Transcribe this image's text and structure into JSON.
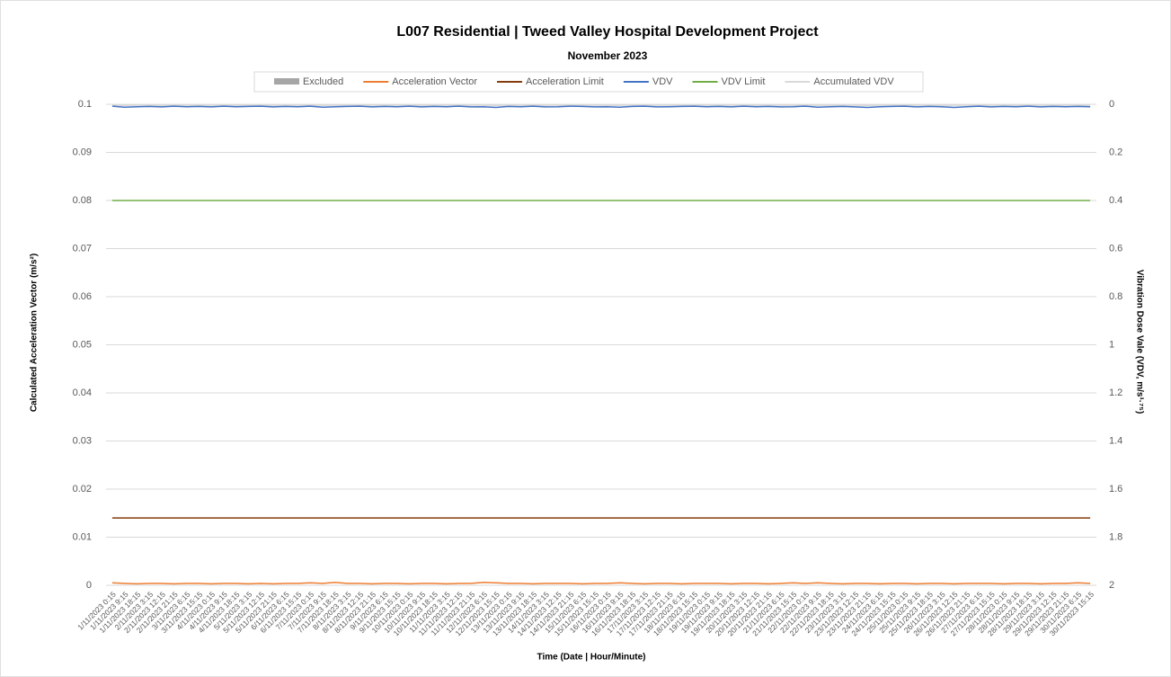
{
  "chart_data": {
    "type": "line",
    "title": "L007 Residential | Tweed Valley Hospital Development Project",
    "subtitle": "November 2023",
    "xlabel": "Time (Date | Hour/Minute)",
    "ylabel": "Calculated Acceleration Vector (m/s²)",
    "y2label": "Vibration Dose Vale (VDV, m/s¹·⁷⁵)",
    "ylim": [
      0,
      0.1
    ],
    "yticks": [
      0,
      0.01,
      0.02,
      0.03,
      0.04,
      0.05,
      0.06,
      0.07,
      0.08,
      0.09,
      0.1
    ],
    "y2lim": [
      2,
      0
    ],
    "y2ticks": [
      0,
      0.2,
      0.4,
      0.6,
      0.8,
      1,
      1.2,
      1.4,
      1.6,
      1.8,
      2
    ],
    "grid": true,
    "legend": "top",
    "categories": [
      "1/11/2023 0:15",
      "1/11/2023 9:15",
      "1/11/2023 18:15",
      "2/11/2023 3:15",
      "2/11/2023 12:15",
      "2/11/2023 21:15",
      "3/11/2023 6:15",
      "3/11/2023 15:15",
      "4/11/2023 0:15",
      "4/11/2023 9:15",
      "4/11/2023 18:15",
      "5/11/2023 3:15",
      "5/11/2023 12:15",
      "5/11/2023 21:15",
      "6/11/2023 6:15",
      "6/11/2023 15:15",
      "7/11/2023 0:15",
      "7/11/2023 9:15",
      "7/11/2023 18:15",
      "8/11/2023 3:15",
      "8/11/2023 12:15",
      "8/11/2023 21:15",
      "9/11/2023 6:15",
      "9/11/2023 15:15",
      "10/11/2023 0:15",
      "10/11/2023 9:15",
      "10/11/2023 18:15",
      "11/11/2023 3:15",
      "11/11/2023 12:15",
      "11/11/2023 21:15",
      "12/11/2023 6:15",
      "12/11/2023 15:15",
      "13/11/2023 0:15",
      "13/11/2023 9:15",
      "13/11/2023 18:15",
      "14/11/2023 3:15",
      "14/11/2023 12:15",
      "14/11/2023 21:15",
      "15/11/2023 6:15",
      "15/11/2023 15:15",
      "16/11/2023 0:15",
      "16/11/2023 9:15",
      "16/11/2023 18:15",
      "17/11/2023 3:15",
      "17/11/2023 12:15",
      "17/11/2023 21:15",
      "18/11/2023 6:15",
      "18/11/2023 15:15",
      "19/11/2023 0:15",
      "19/11/2023 9:15",
      "19/11/2023 18:15",
      "20/11/2023 3:15",
      "20/11/2023 12:15",
      "20/11/2023 21:15",
      "21/11/2023 6:15",
      "21/11/2023 15:15",
      "22/11/2023 0:15",
      "22/11/2023 9:15",
      "22/11/2023 18:15",
      "23/11/2023 3:15",
      "23/11/2023 12:15",
      "23/11/2023 21:15",
      "24/11/2023 6:15",
      "24/11/2023 15:15",
      "25/11/2023 0:15",
      "25/11/2023 9:15",
      "25/11/2023 18:15",
      "26/11/2023 3:15",
      "26/11/2023 12:15",
      "26/11/2023 21:15",
      "27/11/2023 6:15",
      "27/11/2023 15:15",
      "28/11/2023 0:15",
      "28/11/2023 9:15",
      "28/11/2023 18:15",
      "29/11/2023 3:15",
      "29/11/2023 12:15",
      "29/11/2023 21:15",
      "30/11/2023 6:15",
      "30/11/2023 15:15"
    ],
    "series": [
      {
        "name": "Excluded",
        "color": "#a6a6a6"
      },
      {
        "name": "Acceleration Vector",
        "color": "#ed7d31",
        "values": [
          0.0005,
          0.0004,
          0.0003,
          0.0004,
          0.0004,
          0.0003,
          0.0004,
          0.0004,
          0.0003,
          0.0004,
          0.0004,
          0.0003,
          0.0004,
          0.0003,
          0.0004,
          0.0004,
          0.0005,
          0.0004,
          0.0006,
          0.0004,
          0.0004,
          0.0003,
          0.0004,
          0.0004,
          0.0003,
          0.0004,
          0.0004,
          0.0003,
          0.0004,
          0.0004,
          0.0006,
          0.0005,
          0.0004,
          0.0004,
          0.0003,
          0.0004,
          0.0004,
          0.0004,
          0.0003,
          0.0004,
          0.0004,
          0.0005,
          0.0004,
          0.0003,
          0.0004,
          0.0004,
          0.0003,
          0.0004,
          0.0004,
          0.0004,
          0.0003,
          0.0004,
          0.0004,
          0.0003,
          0.0004,
          0.0005,
          0.0004,
          0.0005,
          0.0004,
          0.0003,
          0.0004,
          0.0004,
          0.0003,
          0.0004,
          0.0004,
          0.0003,
          0.0004,
          0.0004,
          0.0003,
          0.0004,
          0.0004,
          0.0004,
          0.0003,
          0.0004,
          0.0004,
          0.0003,
          0.0004,
          0.0004,
          0.0005,
          0.0004
        ]
      },
      {
        "name": "Acceleration Limit",
        "color": "#843c0c",
        "values": [
          0.014,
          0.014,
          0.014,
          0.014,
          0.014,
          0.014,
          0.014,
          0.014,
          0.014,
          0.014,
          0.014,
          0.014,
          0.014,
          0.014,
          0.014,
          0.014,
          0.014,
          0.014,
          0.014,
          0.014,
          0.014,
          0.014,
          0.014,
          0.014,
          0.014,
          0.014,
          0.014,
          0.014,
          0.014,
          0.014,
          0.014,
          0.014,
          0.014,
          0.014,
          0.014,
          0.014,
          0.014,
          0.014,
          0.014,
          0.014,
          0.014,
          0.014,
          0.014,
          0.014,
          0.014,
          0.014,
          0.014,
          0.014,
          0.014,
          0.014,
          0.014,
          0.014,
          0.014,
          0.014,
          0.014,
          0.014,
          0.014,
          0.014,
          0.014,
          0.014,
          0.014,
          0.014,
          0.014,
          0.014,
          0.014,
          0.014,
          0.014,
          0.014,
          0.014,
          0.014,
          0.014,
          0.014,
          0.014,
          0.014,
          0.014,
          0.014,
          0.014,
          0.014,
          0.014,
          0.014
        ]
      },
      {
        "name": "VDV",
        "color": "#4472c4",
        "axis": "y2",
        "values": [
          0.008,
          0.012,
          0.01,
          0.009,
          0.011,
          0.008,
          0.01,
          0.009,
          0.011,
          0.008,
          0.01,
          0.009,
          0.008,
          0.011,
          0.009,
          0.01,
          0.008,
          0.012,
          0.01,
          0.009,
          0.008,
          0.011,
          0.009,
          0.01,
          0.008,
          0.011,
          0.009,
          0.01,
          0.008,
          0.011,
          0.01,
          0.013,
          0.009,
          0.01,
          0.008,
          0.011,
          0.01,
          0.008,
          0.009,
          0.011,
          0.01,
          0.012,
          0.009,
          0.008,
          0.011,
          0.01,
          0.009,
          0.008,
          0.01,
          0.009,
          0.011,
          0.008,
          0.01,
          0.009,
          0.011,
          0.01,
          0.008,
          0.012,
          0.01,
          0.009,
          0.011,
          0.013,
          0.01,
          0.009,
          0.008,
          0.011,
          0.009,
          0.01,
          0.013,
          0.01,
          0.008,
          0.011,
          0.009,
          0.01,
          0.008,
          0.011,
          0.009,
          0.01,
          0.009,
          0.01
        ]
      },
      {
        "name": "VDV Limit",
        "color": "#70ad47",
        "axis": "y2",
        "values": [
          0.4,
          0.4,
          0.4,
          0.4,
          0.4,
          0.4,
          0.4,
          0.4,
          0.4,
          0.4,
          0.4,
          0.4,
          0.4,
          0.4,
          0.4,
          0.4,
          0.4,
          0.4,
          0.4,
          0.4,
          0.4,
          0.4,
          0.4,
          0.4,
          0.4,
          0.4,
          0.4,
          0.4,
          0.4,
          0.4,
          0.4,
          0.4,
          0.4,
          0.4,
          0.4,
          0.4,
          0.4,
          0.4,
          0.4,
          0.4,
          0.4,
          0.4,
          0.4,
          0.4,
          0.4,
          0.4,
          0.4,
          0.4,
          0.4,
          0.4,
          0.4,
          0.4,
          0.4,
          0.4,
          0.4,
          0.4,
          0.4,
          0.4,
          0.4,
          0.4,
          0.4,
          0.4,
          0.4,
          0.4,
          0.4,
          0.4,
          0.4,
          0.4,
          0.4,
          0.4,
          0.4,
          0.4,
          0.4,
          0.4,
          0.4,
          0.4,
          0.4,
          0.4,
          0.4,
          0.4
        ]
      },
      {
        "name": "Accumulated VDV",
        "color": "#d9d9d9",
        "axis": "y2",
        "values": [
          0.004,
          0.005,
          0.004,
          0.004,
          0.005,
          0.004,
          0.004,
          0.005,
          0.004,
          0.004,
          0.005,
          0.004,
          0.004,
          0.005,
          0.004,
          0.004,
          0.005,
          0.004,
          0.004,
          0.005,
          0.004,
          0.004,
          0.005,
          0.004,
          0.004,
          0.005,
          0.004,
          0.004,
          0.005,
          0.004,
          0.004,
          0.005,
          0.004,
          0.004,
          0.005,
          0.004,
          0.004,
          0.005,
          0.004,
          0.004,
          0.005,
          0.004,
          0.004,
          0.005,
          0.004,
          0.004,
          0.005,
          0.004,
          0.004,
          0.005,
          0.004,
          0.004,
          0.005,
          0.004,
          0.004,
          0.005,
          0.004,
          0.004,
          0.005,
          0.004,
          0.004,
          0.005,
          0.004,
          0.004,
          0.005,
          0.004,
          0.004,
          0.005,
          0.004,
          0.004,
          0.005,
          0.004,
          0.004,
          0.005,
          0.004,
          0.004,
          0.005,
          0.004,
          0.004,
          0.005
        ]
      }
    ]
  }
}
